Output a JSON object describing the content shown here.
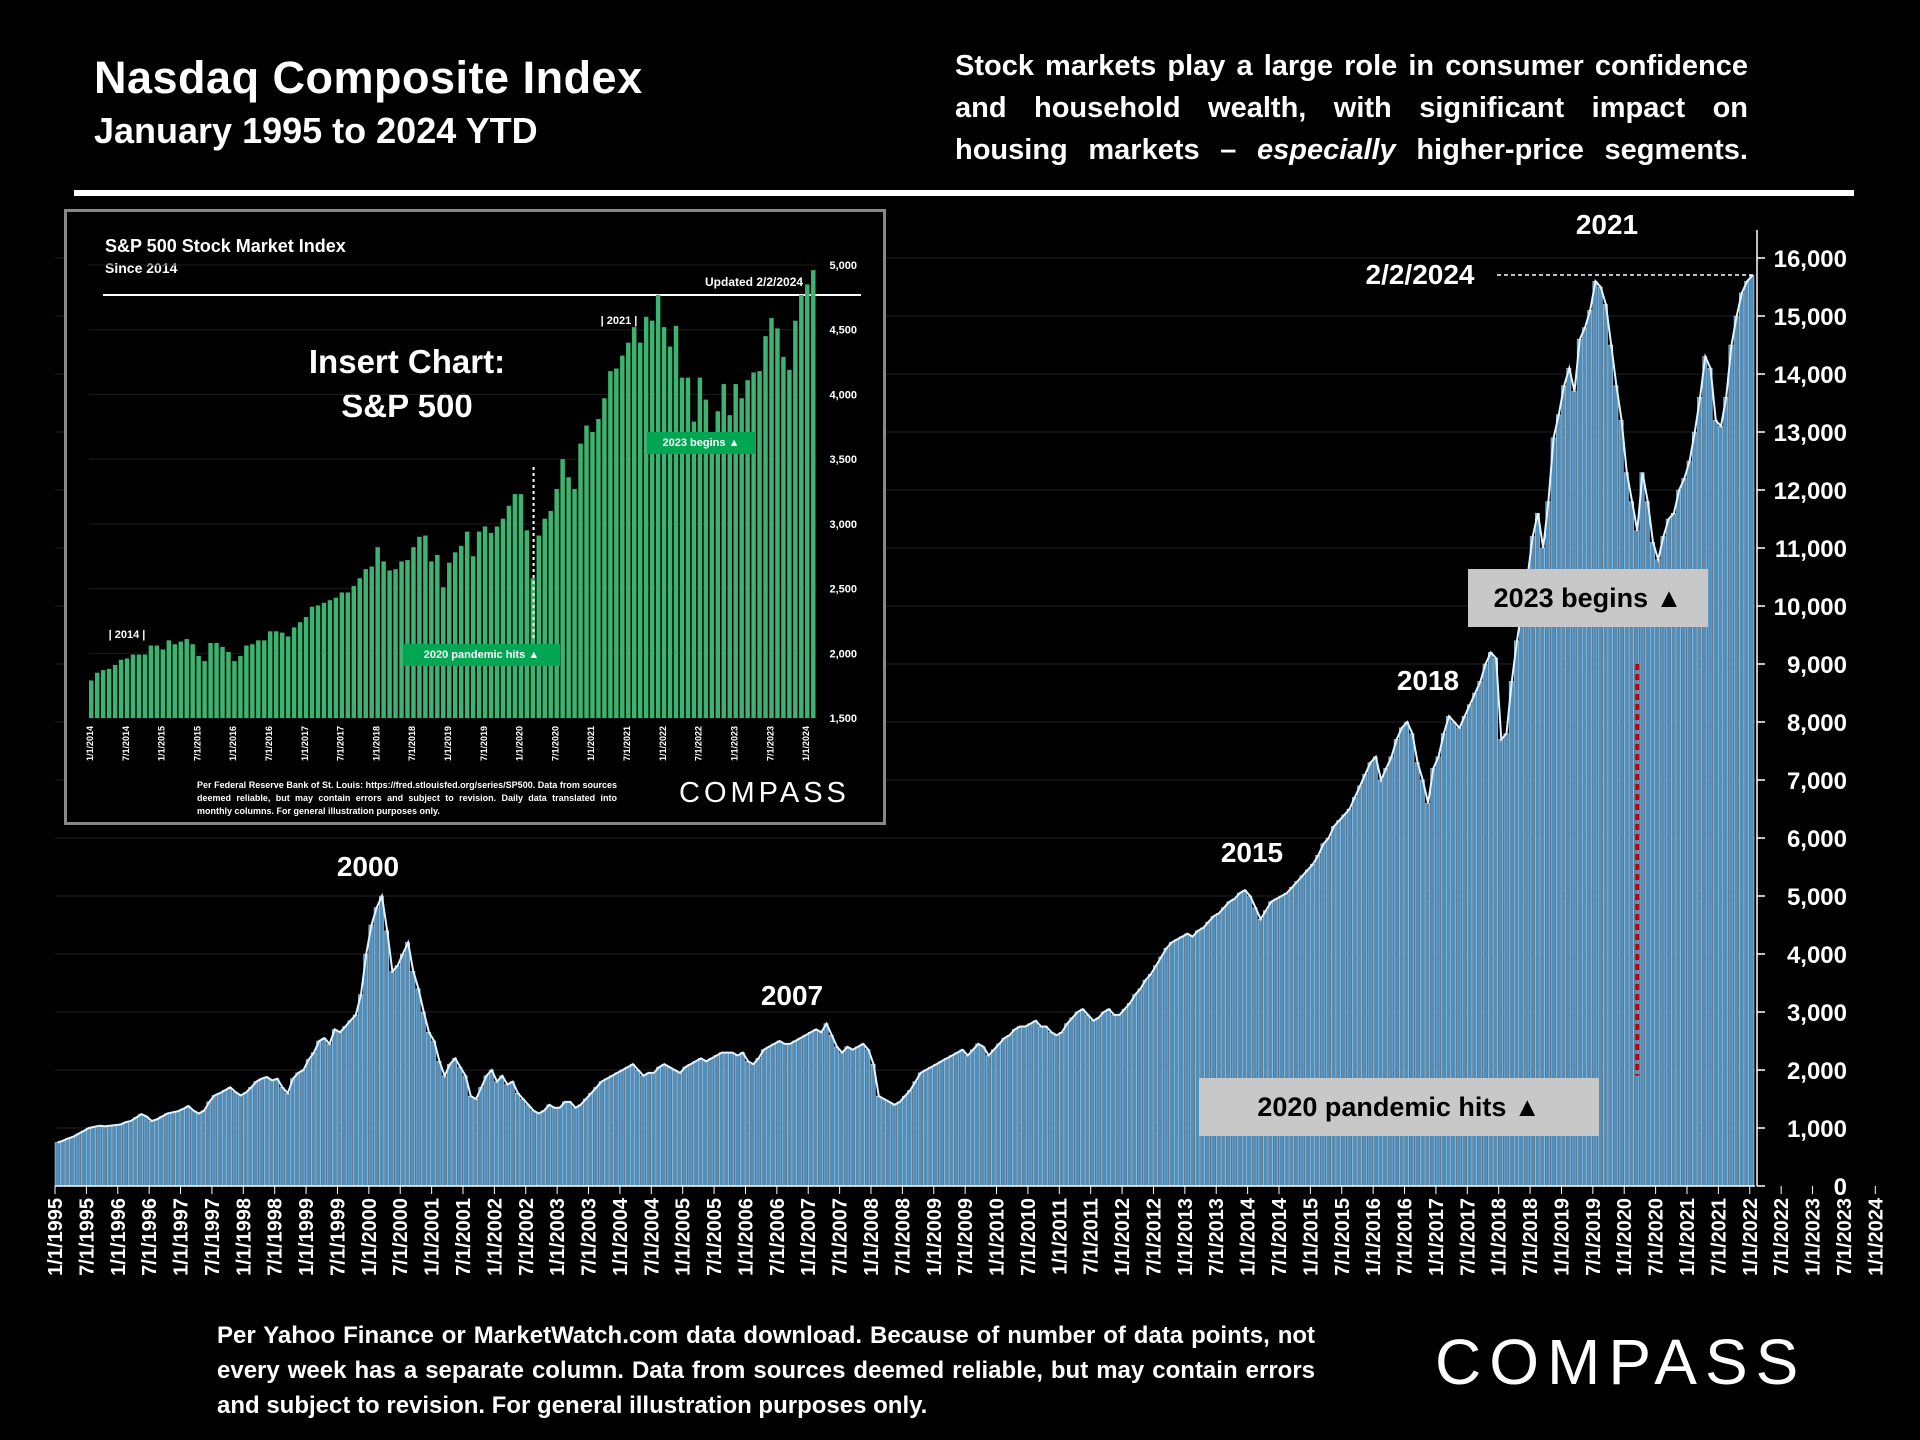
{
  "header": {
    "title": "Nasdaq Composite Index",
    "subtitle": "January 1995 to 2024 YTD",
    "blurb_part1": "Stock markets play a large role in consumer confidence and household wealth, with significant impact on housing markets – ",
    "blurb_em": "especially",
    "blurb_part2": " higher-price segments."
  },
  "footnote": "Per Yahoo Finance or MarketWatch.com data download. Because of number of data points, not every week has a separate column. Data from sources deemed reliable, but may contain errors and subject to revision. For general illustration purposes only.",
  "logo_text": "COMPASS",
  "colors": {
    "bar": "#4f8fbd",
    "bar_edge": "#cfe9ff",
    "line": "#dff4ff",
    "marker": "#c00000",
    "badge_bg": "#c8c8c8",
    "inset_bar": "#3cb371",
    "inset_badge": "#00a651"
  },
  "chart_data": [
    {
      "type": "bar",
      "title": "Nasdaq Composite Index",
      "ylim": [
        0,
        16000
      ],
      "yticks": [
        0,
        1000,
        2000,
        3000,
        4000,
        5000,
        6000,
        7000,
        8000,
        9000,
        10000,
        11000,
        12000,
        13000,
        14000,
        15000,
        16000
      ],
      "ytick_labels": [
        "0",
        "1,000",
        "2,000",
        "3,000",
        "4,000",
        "5,000",
        "6,000",
        "7,000",
        "8,000",
        "9,000",
        "10,000",
        "11,000",
        "12,000",
        "13,000",
        "14,000",
        "15,000",
        "16,000"
      ],
      "xtick_labels": [
        "1/1/1995",
        "7/1/1995",
        "1/1/1996",
        "7/1/1996",
        "1/1/1997",
        "7/1/1997",
        "1/1/1998",
        "7/1/1998",
        "1/1/1999",
        "7/1/1999",
        "1/1/2000",
        "7/1/2000",
        "1/1/2001",
        "7/1/2001",
        "1/1/2002",
        "7/1/2002",
        "1/1/2003",
        "7/1/2003",
        "1/1/2004",
        "7/1/2004",
        "1/1/2005",
        "7/1/2005",
        "1/1/2006",
        "7/1/2006",
        "1/1/2007",
        "7/1/2007",
        "1/1/2008",
        "7/1/2008",
        "1/1/2009",
        "7/1/2009",
        "1/1/2010",
        "7/1/2010",
        "1/1/2011",
        "7/1/2011",
        "1/1/2012",
        "7/1/2012",
        "1/1/2013",
        "7/1/2013",
        "1/1/2014",
        "7/1/2014",
        "1/1/2015",
        "7/1/2015",
        "1/1/2016",
        "7/1/2016",
        "1/1/2017",
        "7/1/2017",
        "1/1/2018",
        "7/1/2018",
        "1/1/2019",
        "7/1/2019",
        "1/1/2020",
        "7/1/2020",
        "1/1/2021",
        "7/1/2021",
        "1/1/2022",
        "7/1/2022",
        "1/1/2023",
        "7/1/2023",
        "1/1/2024"
      ],
      "series": [
        {
          "x_start": "1995-01",
          "values": [
            750,
            780,
            820,
            850,
            900,
            950,
            1000,
            1020,
            1040,
            1030,
            1040,
            1050,
            1060,
            1100,
            1120,
            1180,
            1240,
            1200,
            1120,
            1150,
            1200,
            1250,
            1270,
            1290,
            1330,
            1380,
            1300,
            1250,
            1300,
            1450,
            1560,
            1600,
            1650,
            1700,
            1620,
            1560,
            1610,
            1700,
            1800,
            1850,
            1880,
            1820,
            1850,
            1700,
            1600,
            1850,
            1950,
            2000,
            2180,
            2300,
            2500,
            2550,
            2450,
            2700,
            2650,
            2750,
            2850,
            2950,
            3300,
            4000,
            4500,
            4800,
            5000,
            4400,
            3700,
            3800,
            4000,
            4200,
            3700,
            3400,
            3000,
            2650,
            2500,
            2150,
            1900,
            2100,
            2200,
            2050,
            1900,
            1550,
            1500,
            1700,
            1900,
            2000,
            1800,
            1900,
            1750,
            1800,
            1600,
            1500,
            1400,
            1300,
            1250,
            1300,
            1400,
            1350,
            1350,
            1450,
            1450,
            1350,
            1400,
            1500,
            1600,
            1700,
            1800,
            1850,
            1900,
            1950,
            2000,
            2050,
            2100,
            2000,
            1900,
            1950,
            1950,
            2050,
            2100,
            2050,
            2000,
            1950,
            2050,
            2100,
            2150,
            2200,
            2150,
            2200,
            2250,
            2300,
            2300,
            2300,
            2250,
            2300,
            2150,
            2100,
            2200,
            2350,
            2400,
            2450,
            2500,
            2450,
            2450,
            2500,
            2550,
            2600,
            2650,
            2700,
            2650,
            2800,
            2600,
            2400,
            2300,
            2400,
            2350,
            2400,
            2450,
            2350,
            2100,
            1550,
            1500,
            1450,
            1400,
            1450,
            1550,
            1650,
            1800,
            1950,
            2000,
            2050,
            2100,
            2150,
            2200,
            2250,
            2300,
            2350,
            2250,
            2350,
            2450,
            2400,
            2250,
            2350,
            2450,
            2550,
            2600,
            2700,
            2750,
            2750,
            2800,
            2850,
            2750,
            2750,
            2650,
            2600,
            2650,
            2800,
            2900,
            3000,
            3050,
            2950,
            2850,
            2900,
            3000,
            3050,
            2950,
            2950,
            3050,
            3150,
            3300,
            3400,
            3550,
            3650,
            3800,
            3950,
            4100,
            4200,
            4250,
            4300,
            4350,
            4300,
            4400,
            4450,
            4550,
            4650,
            4700,
            4800,
            4900,
            4950,
            5050,
            5100,
            5000,
            4800,
            4600,
            4750,
            4900,
            4950,
            5000,
            5050,
            5150,
            5250,
            5350,
            5450,
            5550,
            5700,
            5900,
            6000,
            6200,
            6300,
            6400,
            6500,
            6700,
            6900,
            7100,
            7300,
            7400,
            7000,
            7200,
            7400,
            7700,
            7900,
            8000,
            7800,
            7300,
            7000,
            6600,
            7200,
            7400,
            7800,
            8100,
            8000,
            7900,
            8100,
            8300,
            8500,
            8700,
            9000,
            9200,
            9100,
            7700,
            7800,
            8700,
            9400,
            10000,
            10500,
            11200,
            11600,
            11000,
            11800,
            12900,
            13300,
            13800,
            14100,
            13700,
            14600,
            14800,
            15100,
            15600,
            15500,
            15200,
            14500,
            13800,
            13200,
            12300,
            11800,
            11300,
            12300,
            11800,
            11100,
            10800,
            11200,
            11500,
            11600,
            12000,
            12200,
            12500,
            13000,
            13600,
            14300,
            14100,
            13200,
            13100,
            13600,
            14500,
            15000,
            15400,
            15600,
            15700
          ]
        }
      ],
      "annotations": [
        "2000",
        "2007",
        "2015",
        "2018",
        "2021",
        "2/2/2024"
      ],
      "badges": [
        "2023 begins ▲",
        "2020 pandemic hits ▲"
      ]
    },
    {
      "type": "bar",
      "title": "S&P 500 Stock Market Index",
      "subtitle": "Since 2014",
      "updated": "Updated 2/2/2024",
      "ylim": [
        1500,
        5000
      ],
      "yticks": [
        1500,
        2000,
        2500,
        3000,
        3500,
        4000,
        4500,
        5000
      ],
      "ytick_labels": [
        "1,500",
        "2,000",
        "2,500",
        "3,000",
        "3,500",
        "4,000",
        "4,500",
        "5,000"
      ],
      "xtick_labels": [
        "1/1/2014",
        "7/1/2014",
        "1/1/2015",
        "7/1/2015",
        "1/1/2016",
        "7/1/2016",
        "1/1/2017",
        "7/1/2017",
        "1/1/2018",
        "7/1/2018",
        "1/1/2019",
        "7/1/2019",
        "1/1/2020",
        "7/1/2020",
        "1/1/2021",
        "7/1/2021",
        "1/1/2022",
        "7/1/2022",
        "1/1/2023",
        "7/1/2023",
        "1/1/2024"
      ],
      "series": [
        {
          "x_start": "2014-01",
          "values": [
            1790,
            1850,
            1870,
            1880,
            1910,
            1950,
            1960,
            1990,
            1990,
            1990,
            2060,
            2060,
            2030,
            2100,
            2070,
            2090,
            2110,
            2070,
            1980,
            1940,
            2080,
            2080,
            2050,
            2010,
            1940,
            1980,
            2060,
            2070,
            2100,
            2100,
            2170,
            2170,
            2160,
            2130,
            2200,
            2240,
            2280,
            2360,
            2370,
            2390,
            2410,
            2430,
            2470,
            2470,
            2520,
            2580,
            2650,
            2670,
            2820,
            2710,
            2640,
            2650,
            2710,
            2720,
            2820,
            2900,
            2910,
            2710,
            2760,
            2510,
            2700,
            2780,
            2830,
            2940,
            2750,
            2940,
            2980,
            2930,
            2980,
            3040,
            3140,
            3230,
            3230,
            2950,
            2580,
            2910,
            3040,
            3100,
            3270,
            3500,
            3360,
            3270,
            3620,
            3760,
            3710,
            3810,
            3970,
            4180,
            4200,
            4300,
            4400,
            4520,
            4400,
            4600,
            4570,
            4770,
            4520,
            4370,
            4530,
            4130,
            4130,
            3790,
            4130,
            3960,
            3590,
            3870,
            4080,
            3840,
            4080,
            3970,
            4110,
            4170,
            4180,
            4450,
            4590,
            4510,
            4290,
            4190,
            4570,
            4770,
            4850,
            4960
          ]
        }
      ],
      "annotations": [
        "2014",
        "2021"
      ],
      "badges": [
        "2023 begins ▲",
        "2020 pandemic hits ▲"
      ],
      "insert_label": [
        "Insert Chart:",
        "S&P 500"
      ],
      "source": "Per Federal Reserve Bank of St. Louis: https://fred.stlouisfed.org/series/SP500. Data from sources deemed reliable, but may contain errors and subject to revision. Daily data translated into monthly columns. For general illustration purposes only.",
      "logo_text": "COMPASS"
    }
  ]
}
